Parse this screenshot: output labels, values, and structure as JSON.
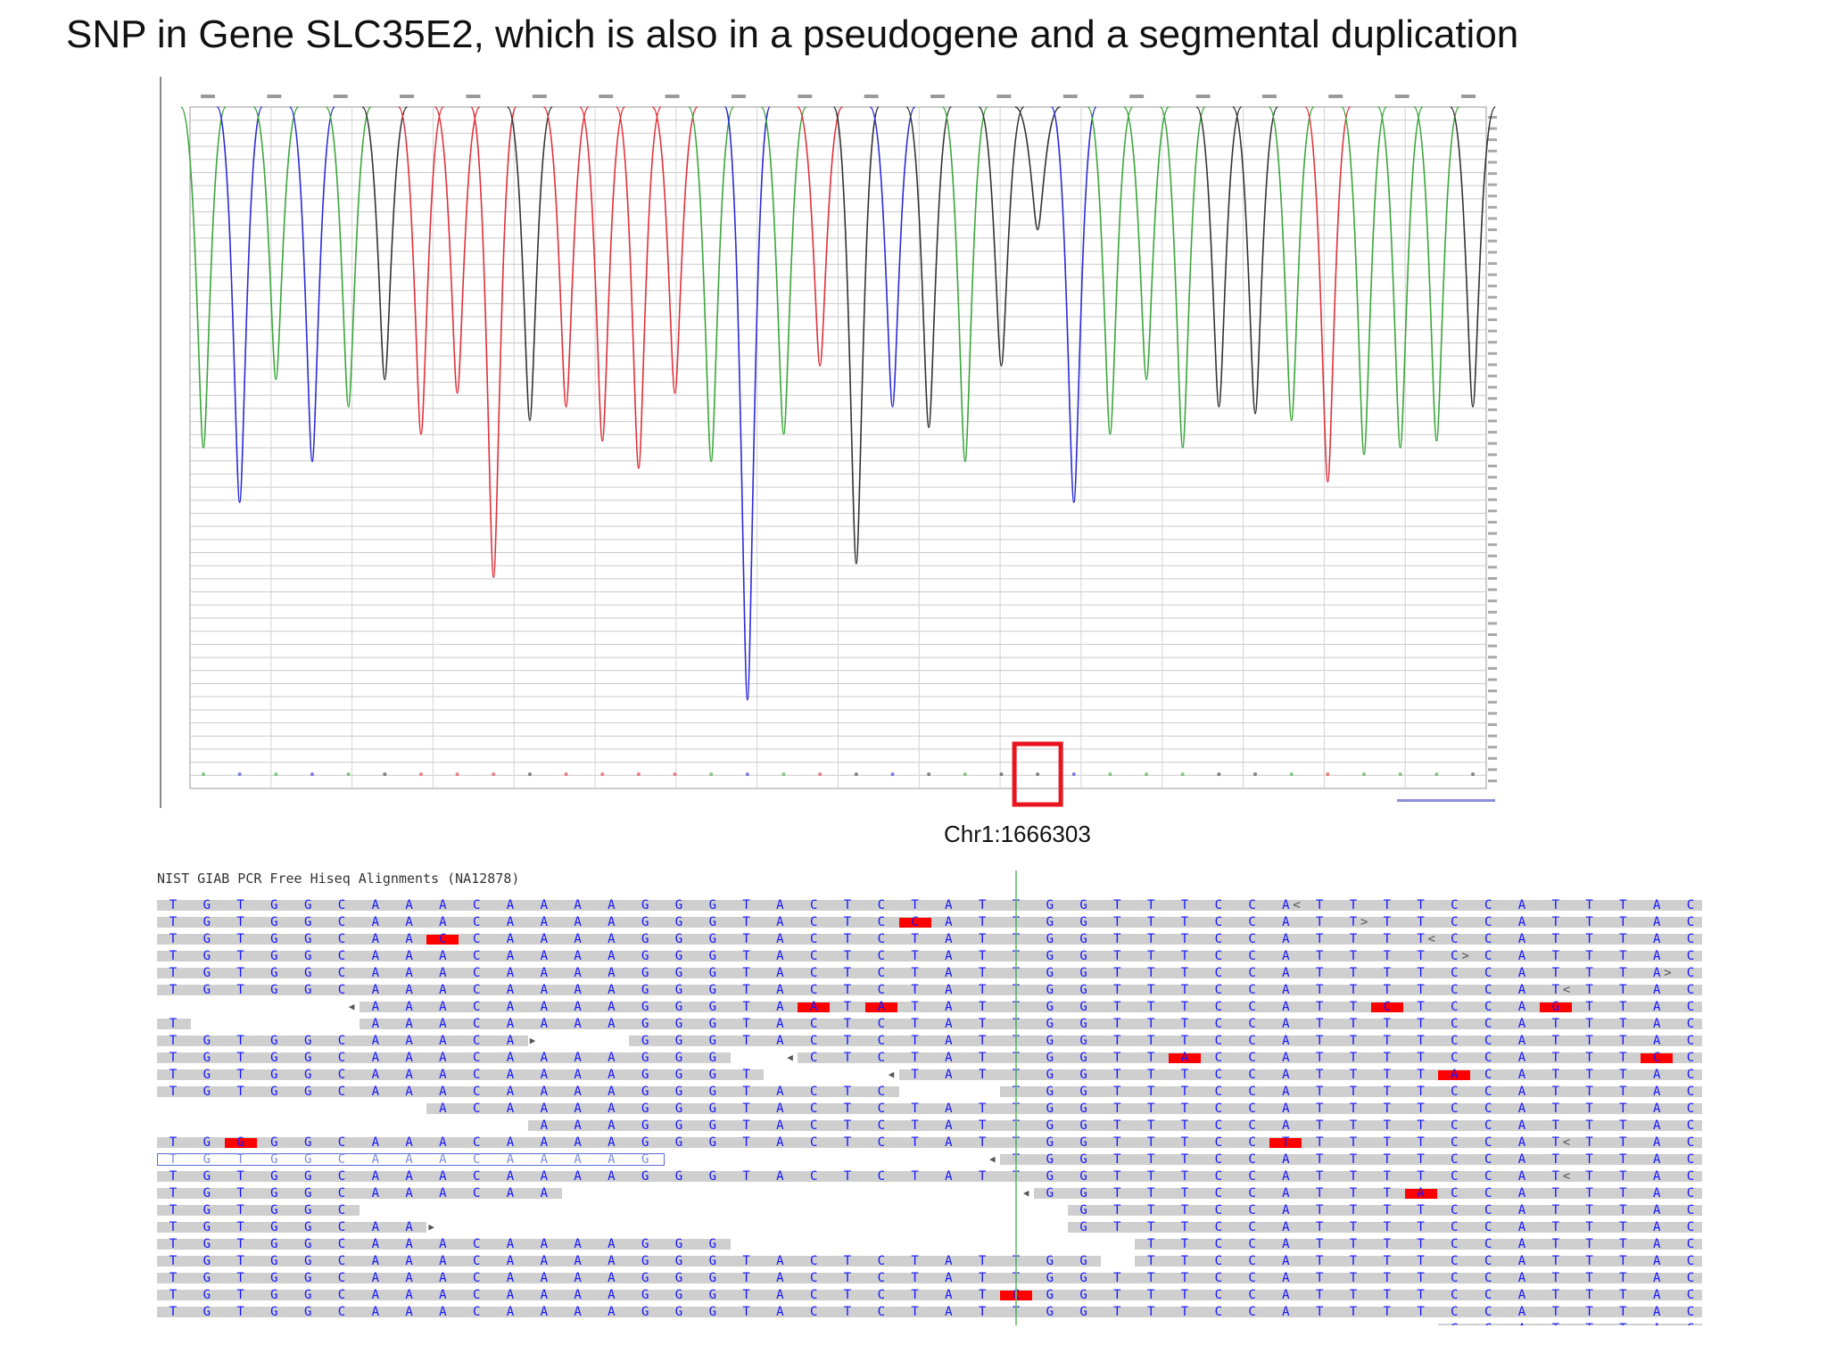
{
  "slide": {
    "title": "SNP in Gene SLC35E2, which is also in a pseudogene and a segmental duplication"
  },
  "chromatogram": {
    "snp_label": "Chr1:1666303",
    "peaks": [
      {
        "color": "green",
        "depth": 0.5
      },
      {
        "color": "blue",
        "depth": 0.58
      },
      {
        "color": "green",
        "depth": 0.4
      },
      {
        "color": "blue",
        "depth": 0.52
      },
      {
        "color": "green",
        "depth": 0.44
      },
      {
        "color": "black",
        "depth": 0.4
      },
      {
        "color": "red",
        "depth": 0.48
      },
      {
        "color": "red",
        "depth": 0.42
      },
      {
        "color": "red",
        "depth": 0.69
      },
      {
        "color": "black",
        "depth": 0.46
      },
      {
        "color": "red",
        "depth": 0.44
      },
      {
        "color": "red",
        "depth": 0.49
      },
      {
        "color": "red",
        "depth": 0.53
      },
      {
        "color": "red",
        "depth": 0.42
      },
      {
        "color": "green",
        "depth": 0.52
      },
      {
        "color": "blue",
        "depth": 0.87
      },
      {
        "color": "green",
        "depth": 0.48
      },
      {
        "color": "red",
        "depth": 0.38
      },
      {
        "color": "black",
        "depth": 0.67
      },
      {
        "color": "blue",
        "depth": 0.44
      },
      {
        "color": "black",
        "depth": 0.47
      },
      {
        "color": "green",
        "depth": 0.52
      },
      {
        "color": "black",
        "depth": 0.38
      },
      {
        "color": "black",
        "depth": 0.18
      },
      {
        "color": "blue",
        "depth": 0.58
      },
      {
        "color": "green",
        "depth": 0.48
      },
      {
        "color": "green",
        "depth": 0.4
      },
      {
        "color": "green",
        "depth": 0.5
      },
      {
        "color": "black",
        "depth": 0.44
      },
      {
        "color": "black",
        "depth": 0.45
      },
      {
        "color": "green",
        "depth": 0.46
      },
      {
        "color": "red",
        "depth": 0.55
      },
      {
        "color": "green",
        "depth": 0.51
      },
      {
        "color": "green",
        "depth": 0.5
      },
      {
        "color": "green",
        "depth": 0.49
      },
      {
        "color": "black",
        "depth": 0.44
      }
    ],
    "highlight_peak_index": 23
  },
  "alignments": {
    "header": "NIST GIAB PCR Free Hiseq Alignments (NA12878)",
    "reference": [
      "T",
      "G",
      "T",
      "G",
      "G",
      "C",
      "A",
      "A",
      "A",
      "C",
      "A",
      "A",
      "A",
      "A",
      "G",
      "G",
      "G",
      "T",
      "A",
      "C",
      "T",
      "C",
      "T",
      "A",
      "T",
      "T",
      "G",
      "G",
      "T",
      "T",
      "T",
      "C",
      "C",
      "A",
      "T",
      "T",
      "T",
      "T",
      "C",
      "C",
      "A",
      "T",
      "T",
      "T",
      "A",
      "C"
    ],
    "reads": [
      {
        "segs": [
          [
            0,
            46
          ]
        ],
        "mm": [],
        "ins": [
          [
            33,
            "<"
          ]
        ]
      },
      {
        "segs": [
          [
            0,
            46
          ]
        ],
        "mm": [
          [
            22,
            "C"
          ]
        ],
        "ins": [
          [
            35,
            ">"
          ]
        ]
      },
      {
        "segs": [
          [
            0,
            46
          ]
        ],
        "mm": [
          [
            8,
            "C"
          ]
        ],
        "ins": [
          [
            37,
            "<"
          ]
        ]
      },
      {
        "segs": [
          [
            0,
            46
          ]
        ],
        "mm": [],
        "ins": [
          [
            38,
            ">"
          ]
        ]
      },
      {
        "segs": [
          [
            0,
            46
          ]
        ],
        "mm": [],
        "ins": [
          [
            44,
            ">"
          ]
        ]
      },
      {
        "segs": [
          [
            0,
            46
          ]
        ],
        "mm": [],
        "ins": [
          [
            41,
            "<"
          ]
        ]
      },
      {
        "segs": [
          [
            6,
            46
          ]
        ],
        "mm": [
          [
            19,
            "A"
          ],
          [
            21,
            "A"
          ],
          [
            36,
            "C"
          ],
          [
            41,
            "G"
          ]
        ],
        "ins": [],
        "larrow": 6
      },
      {
        "segs": [
          [
            0,
            1
          ],
          [
            6,
            46
          ]
        ],
        "mm": [],
        "ins": []
      },
      {
        "segs": [
          [
            0,
            11
          ],
          [
            14,
            46
          ]
        ],
        "mm": [],
        "ins": [],
        "rarrow": 11
      },
      {
        "segs": [
          [
            0,
            17
          ],
          [
            19,
            46
          ]
        ],
        "mm": [
          [
            30,
            "A"
          ],
          [
            44,
            "C"
          ]
        ],
        "ins": [],
        "larrow": 19
      },
      {
        "segs": [
          [
            0,
            18
          ],
          [
            22,
            46
          ]
        ],
        "mm": [
          [
            38,
            "A"
          ]
        ],
        "ins": [],
        "larrow": 22
      },
      {
        "segs": [
          [
            0,
            22
          ],
          [
            25,
            46
          ]
        ],
        "mm": [],
        "ins": []
      },
      {
        "segs": [
          [
            8,
            26
          ],
          [
            25,
            46
          ]
        ],
        "mm": [],
        "ins": []
      },
      {
        "segs": [
          [
            11,
            46
          ]
        ],
        "mm": [],
        "ins": []
      },
      {
        "segs": [
          [
            0,
            46
          ]
        ],
        "mm": [
          [
            2,
            "G"
          ],
          [
            33,
            "T"
          ]
        ],
        "ins": [
          [
            41,
            "<"
          ]
        ]
      },
      {
        "segs": [
          [
            25,
            46
          ]
        ],
        "mm": [],
        "ins": [],
        "outline": [
          0,
          15
        ],
        "larrow": 25
      },
      {
        "segs": [
          [
            0,
            46
          ]
        ],
        "mm": [],
        "ins": [
          [
            41,
            "<"
          ]
        ]
      },
      {
        "segs": [
          [
            0,
            12
          ],
          [
            26,
            46
          ]
        ],
        "mm": [
          [
            37,
            "A"
          ]
        ],
        "ins": [],
        "larrow": 26
      },
      {
        "segs": [
          [
            0,
            6
          ],
          [
            27,
            46
          ]
        ],
        "mm": [],
        "ins": []
      },
      {
        "segs": [
          [
            0,
            8
          ],
          [
            27,
            46
          ]
        ],
        "mm": [],
        "ins": [],
        "rarrow": 8
      },
      {
        "segs": [
          [
            0,
            17
          ],
          [
            29,
            46
          ]
        ],
        "mm": [],
        "ins": []
      },
      {
        "segs": [
          [
            0,
            28
          ],
          [
            29,
            46
          ]
        ],
        "mm": [],
        "ins": []
      },
      {
        "segs": [
          [
            0,
            46
          ]
        ],
        "mm": [],
        "ins": []
      },
      {
        "segs": [
          [
            0,
            46
          ]
        ],
        "mm": [
          [
            25,
            "C"
          ]
        ],
        "ins": []
      },
      {
        "segs": [
          [
            0,
            46
          ]
        ],
        "mm": [],
        "ins": []
      },
      {
        "segs": [
          [
            38,
            46
          ]
        ],
        "mm": [],
        "ins": []
      }
    ]
  },
  "colors": {
    "trace_green": "#3aa63a",
    "trace_blue": "#2b2bd8",
    "trace_red": "#e0303a",
    "trace_black": "#333333",
    "highlight_box": "#e8141e",
    "mismatch": "#ff0000",
    "base_text": "#1414ff",
    "read_bar": "#cfcfcf"
  }
}
